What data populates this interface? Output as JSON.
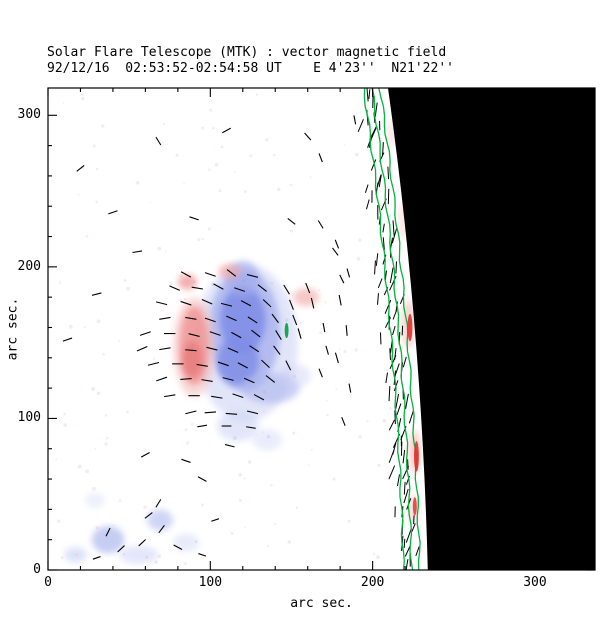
{
  "chart_data": {
    "type": "heatmap",
    "title": "Solar Flare Telescope (MTK) : vector magnetic field",
    "subtitle": "92/12/16  02:53:52-02:54:58 UT    E 4'23''  N21'22''",
    "xlabel": "arc sec.",
    "ylabel": "arc sec.",
    "xticks": [
      0,
      100,
      200,
      300
    ],
    "yticks": [
      0,
      100,
      200,
      300
    ],
    "xlim": [
      0,
      337
    ],
    "ylim": [
      0,
      318
    ],
    "major_tick": 100,
    "minor_tick": 20,
    "description": "Vector magnetogram near the east solar limb: red patches = positive longitudinal polarity, blue patches = negative polarity, short black segments = transverse field vectors, dense hatching and green contour lines trace the solar limb, black region = off-limb sky.",
    "colors": {
      "positive_polarity": "#e87d7d",
      "negative_polarity": "#7e8ce6",
      "contour": "#00b43c",
      "off_limb": "#000000",
      "vector": "#000000",
      "background": "#ffffff"
    },
    "polarity_patches": [
      [
        122,
        150,
        32,
        52,
        "#c6ccf2",
        0.5
      ],
      [
        121,
        158,
        22,
        40,
        "#9aa6ec",
        0.65
      ],
      [
        120,
        165,
        14,
        22,
        "#7e8ce6",
        0.85
      ],
      [
        117,
        138,
        13,
        16,
        "#7e8ce6",
        0.8
      ],
      [
        137,
        120,
        18,
        10,
        "#aab4ee",
        0.6
      ],
      [
        120,
        192,
        10,
        12,
        "#a0aaec",
        0.6
      ],
      [
        117,
        95,
        13,
        10,
        "#ccd2f4",
        0.55
      ],
      [
        135,
        86,
        9,
        7,
        "#d4daf6",
        0.5
      ],
      [
        152,
        128,
        10,
        8,
        "#ccd2f4",
        0.45
      ],
      [
        90,
        147,
        13,
        33,
        "#f6bcbc",
        0.55
      ],
      [
        90,
        148,
        9,
        26,
        "#ef9292",
        0.8
      ],
      [
        89,
        139,
        6,
        12,
        "#e87d7d",
        0.85
      ],
      [
        86,
        190,
        6,
        5,
        "#ef9494",
        0.75
      ],
      [
        112,
        197,
        7,
        5,
        "#f2a6a6",
        0.7
      ],
      [
        159,
        180,
        8,
        6,
        "#f2acac",
        0.65
      ],
      [
        37,
        20,
        10,
        9,
        "#aeb8ee",
        0.7
      ],
      [
        69,
        33,
        8,
        7,
        "#b8c0f0",
        0.65
      ],
      [
        17,
        10,
        7,
        5,
        "#c2caf2",
        0.55
      ],
      [
        56,
        10,
        12,
        6,
        "#c8d0f4",
        0.5
      ],
      [
        85,
        18,
        8,
        6,
        "#ccd4f4",
        0.45
      ],
      [
        29,
        46,
        6,
        5,
        "#d8def6",
        0.45
      ],
      [
        222,
        162,
        4,
        16,
        "#f6b4b4",
        0.6
      ],
      [
        226,
        78,
        3.5,
        14,
        "#f4acac",
        0.6
      ],
      [
        225,
        40,
        3,
        10,
        "#f6b8b8",
        0.55
      ],
      [
        219,
        230,
        3,
        12,
        "#f8c4c4",
        0.45
      ],
      [
        212,
        288,
        3,
        10,
        "#f8c8c8",
        0.4
      ]
    ],
    "vectors": [
      [
        85,
        195,
        -30,
        7
      ],
      [
        100,
        195,
        -20,
        7
      ],
      [
        113,
        196,
        -40,
        7
      ],
      [
        126,
        194,
        -15,
        7
      ],
      [
        78,
        186,
        -25,
        7
      ],
      [
        92,
        186,
        -10,
        7
      ],
      [
        105,
        187,
        -30,
        7
      ],
      [
        118,
        185,
        -20,
        7
      ],
      [
        132,
        186,
        -40,
        7
      ],
      [
        147,
        185,
        -60,
        7
      ],
      [
        160,
        186,
        -70,
        7
      ],
      [
        70,
        176,
        -15,
        7
      ],
      [
        85,
        176,
        -20,
        7
      ],
      [
        98,
        177,
        -25,
        7
      ],
      [
        110,
        175,
        -15,
        7
      ],
      [
        122,
        176,
        -30,
        7
      ],
      [
        135,
        176,
        -45,
        7
      ],
      [
        150,
        175,
        -70,
        7
      ],
      [
        163,
        176,
        -78,
        7
      ],
      [
        72,
        166,
        10,
        7
      ],
      [
        88,
        166,
        -10,
        7
      ],
      [
        100,
        165,
        -20,
        7
      ],
      [
        113,
        166,
        -25,
        7
      ],
      [
        126,
        165,
        -35,
        7
      ],
      [
        140,
        166,
        -55,
        7
      ],
      [
        152,
        165,
        -70,
        7
      ],
      [
        60,
        156,
        20,
        7
      ],
      [
        75,
        156,
        0,
        7
      ],
      [
        90,
        155,
        -15,
        7
      ],
      [
        103,
        156,
        -20,
        7
      ],
      [
        116,
        155,
        -30,
        7
      ],
      [
        128,
        156,
        -40,
        7
      ],
      [
        142,
        155,
        -60,
        7
      ],
      [
        155,
        156,
        -75,
        7
      ],
      [
        58,
        146,
        25,
        7
      ],
      [
        72,
        146,
        10,
        7
      ],
      [
        88,
        145,
        -5,
        7
      ],
      [
        101,
        146,
        -15,
        7
      ],
      [
        114,
        145,
        -25,
        7
      ],
      [
        127,
        146,
        -35,
        7
      ],
      [
        141,
        145,
        -55,
        7
      ],
      [
        65,
        136,
        15,
        7
      ],
      [
        80,
        136,
        0,
        7
      ],
      [
        95,
        135,
        -10,
        7
      ],
      [
        108,
        136,
        -20,
        7
      ],
      [
        120,
        135,
        -30,
        7
      ],
      [
        134,
        136,
        -45,
        7
      ],
      [
        148,
        135,
        -65,
        7
      ],
      [
        70,
        126,
        20,
        7
      ],
      [
        85,
        126,
        5,
        7
      ],
      [
        98,
        125,
        -10,
        7
      ],
      [
        111,
        126,
        -15,
        7
      ],
      [
        124,
        125,
        -25,
        7
      ],
      [
        137,
        126,
        -40,
        7
      ],
      [
        75,
        115,
        10,
        7
      ],
      [
        90,
        115,
        0,
        7
      ],
      [
        104,
        114,
        -10,
        7
      ],
      [
        117,
        115,
        -20,
        7
      ],
      [
        130,
        114,
        -30,
        7
      ],
      [
        88,
        104,
        15,
        7
      ],
      [
        100,
        104,
        5,
        7
      ],
      [
        113,
        103,
        -5,
        7
      ],
      [
        126,
        104,
        -15,
        7
      ],
      [
        95,
        95,
        10,
        6
      ],
      [
        110,
        95,
        0,
        6
      ],
      [
        125,
        94,
        -10,
        6
      ],
      [
        20,
        265,
        40,
        6
      ],
      [
        68,
        283,
        -60,
        6
      ],
      [
        110,
        290,
        30,
        6
      ],
      [
        160,
        286,
        -50,
        6
      ],
      [
        168,
        272,
        -70,
        6
      ],
      [
        40,
        236,
        20,
        6
      ],
      [
        90,
        232,
        -20,
        6
      ],
      [
        150,
        230,
        -40,
        6
      ],
      [
        168,
        228,
        -60,
        6
      ],
      [
        177,
        210,
        -55,
        6
      ],
      [
        181,
        192,
        -65,
        6
      ],
      [
        55,
        210,
        10,
        6
      ],
      [
        30,
        182,
        15,
        6
      ],
      [
        12,
        152,
        20,
        6
      ],
      [
        189,
        297,
        -80,
        6
      ],
      [
        178,
        215,
        -70,
        6
      ],
      [
        185,
        196,
        -75,
        6
      ],
      [
        180,
        178,
        -80,
        7
      ],
      [
        184,
        158,
        -85,
        7
      ],
      [
        178,
        140,
        -75,
        7
      ],
      [
        186,
        120,
        -80,
        6
      ],
      [
        182,
        98,
        -70,
        6
      ],
      [
        170,
        160,
        -80,
        6
      ],
      [
        172,
        145,
        -75,
        6
      ],
      [
        168,
        130,
        -70,
        6
      ],
      [
        60,
        76,
        30,
        6
      ],
      [
        85,
        72,
        -20,
        6
      ],
      [
        95,
        60,
        -30,
        6
      ],
      [
        112,
        82,
        -15,
        6
      ],
      [
        103,
        33,
        20,
        5
      ],
      [
        62,
        36,
        40,
        6
      ],
      [
        70,
        27,
        55,
        6
      ],
      [
        58,
        18,
        45,
        6
      ],
      [
        80,
        15,
        -30,
        6
      ],
      [
        30,
        8,
        20,
        5
      ],
      [
        95,
        10,
        -20,
        5
      ],
      [
        68,
        44,
        60,
        6
      ],
      [
        37,
        25,
        65,
        6
      ],
      [
        45,
        14,
        45,
        6
      ]
    ],
    "limb": {
      "points": [
        [
          209.5,
          318
        ],
        [
          226,
          159
        ],
        [
          234,
          0
        ]
      ],
      "contour_offsets": [
        -15,
        -10,
        -5
      ],
      "hatch": {
        "step": 5.2,
        "offset": -11,
        "jitter": 10,
        "angle": 80,
        "angle_jitter": 30,
        "len": 8
      }
    },
    "limb_marks": [
      [
        223,
        160,
        1.5,
        9,
        "#e03030"
      ],
      [
        227,
        75,
        1.5,
        10,
        "#e03030"
      ],
      [
        226,
        42,
        1.2,
        6,
        "#e04040"
      ],
      [
        147,
        158,
        1.2,
        5,
        "#00a040"
      ]
    ],
    "noise": {
      "count": 140,
      "seed": 3
    }
  }
}
